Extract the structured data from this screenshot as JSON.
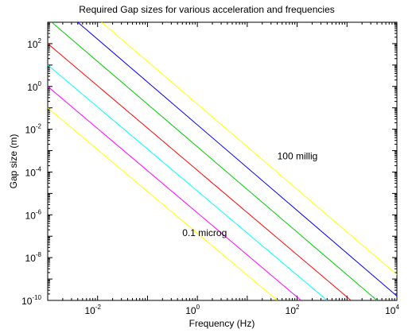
{
  "chart_data": {
    "type": "line",
    "title": "Required Gap sizes for various acceleration and frequencies",
    "xlabel": "Frequency (Hz)",
    "ylabel": "Gap size (m)",
    "x_scale": "log",
    "y_scale": "log",
    "xlim": [
      0.001,
      10000
    ],
    "ylim": [
      1e-10,
      1000
    ],
    "grid": false,
    "legend": "none",
    "x_ticks": [
      {
        "value": 0.01,
        "base": "10",
        "exp": "-2"
      },
      {
        "value": 1,
        "base": "10",
        "exp": "0"
      },
      {
        "value": 100,
        "base": "10",
        "exp": "2"
      },
      {
        "value": 10000,
        "base": "10",
        "exp": "4"
      }
    ],
    "y_ticks": [
      {
        "value": 1e-10,
        "base": "10",
        "exp": "-10"
      },
      {
        "value": 1e-08,
        "base": "10",
        "exp": "-8"
      },
      {
        "value": 1e-06,
        "base": "10",
        "exp": "-6"
      },
      {
        "value": 0.0001,
        "base": "10",
        "exp": "-4"
      },
      {
        "value": 0.01,
        "base": "10",
        "exp": "-2"
      },
      {
        "value": 1,
        "base": "10",
        "exp": "0"
      },
      {
        "value": 100,
        "base": "10",
        "exp": "2"
      }
    ],
    "series": [
      {
        "color": "#ffff00",
        "x": [
          0.001,
          40
        ],
        "y": [
          0.1,
          1e-10
        ]
      },
      {
        "color": "#ff00ff",
        "x": [
          0.001,
          120
        ],
        "y": [
          1,
          1e-10
        ]
      },
      {
        "color": "#00ffff",
        "x": [
          0.001,
          400
        ],
        "y": [
          10,
          1e-10
        ]
      },
      {
        "color": "#ff0000",
        "x": [
          0.001,
          1200
        ],
        "y": [
          100,
          1e-10
        ]
      },
      {
        "color": "#00cc00",
        "x": [
          0.0012,
          4000
        ],
        "y": [
          1000,
          1e-10
        ]
      },
      {
        "color": "#0000ff",
        "x": [
          0.004,
          10000
        ],
        "y": [
          1000,
          1.6e-10
        ]
      },
      {
        "color": "#ffff00",
        "x": [
          0.012,
          10000
        ],
        "y": [
          1000,
          1.6e-09
        ]
      }
    ],
    "annotations": [
      {
        "text": "100 millig",
        "x": 40,
        "y": 0.0004
      },
      {
        "text": "0.1 microg",
        "x": 0.5,
        "y": 1e-07
      }
    ]
  }
}
